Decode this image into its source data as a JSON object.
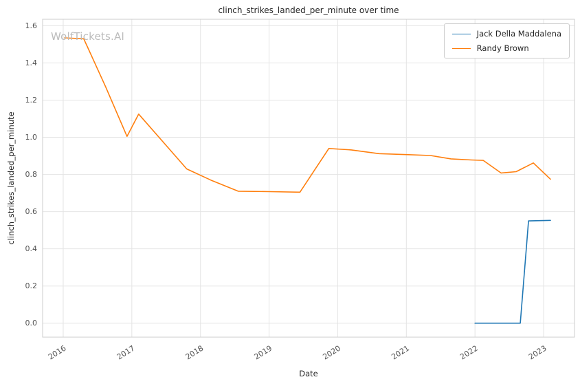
{
  "chart_data": {
    "type": "line",
    "title": "clinch_strikes_landed_per_minute over time",
    "xlabel": "Date",
    "ylabel": "clinch_strikes_landed_per_minute",
    "watermark": "WolfTickets.AI",
    "xlim": [
      2015.7,
      2023.45
    ],
    "ylim": [
      -0.075,
      1.635
    ],
    "xticks": [
      2016,
      2017,
      2018,
      2019,
      2020,
      2021,
      2022,
      2023
    ],
    "yticks": [
      0.0,
      0.2,
      0.4,
      0.6,
      0.8,
      1.0,
      1.2,
      1.4,
      1.6
    ],
    "grid": true,
    "legend_position": "upper right",
    "colors": {
      "grid": "#e4e4e4",
      "border": "#cccccc",
      "tick_label": "#525252",
      "text": "#262626",
      "watermark": "#bcbcbc",
      "background": "#ffffff"
    },
    "series": [
      {
        "name": "Jack Della Maddalena",
        "color": "#1f77b4",
        "x": [
          2022.0,
          2022.3,
          2022.66,
          2022.78,
          2023.1
        ],
        "y": [
          0.0,
          0.0,
          0.0,
          0.55,
          0.553
        ]
      },
      {
        "name": "Randy Brown",
        "color": "#ff7f0e",
        "x": [
          2016.02,
          2016.3,
          2016.62,
          2016.93,
          2017.1,
          2017.8,
          2018.15,
          2018.55,
          2019.0,
          2019.45,
          2019.87,
          2020.2,
          2020.6,
          2021.0,
          2021.35,
          2021.65,
          2021.95,
          2022.12,
          2022.38,
          2022.6,
          2022.85,
          2023.1
        ],
        "y": [
          1.535,
          1.53,
          1.27,
          1.005,
          1.125,
          0.83,
          0.77,
          0.71,
          0.708,
          0.705,
          0.94,
          0.932,
          0.912,
          0.907,
          0.902,
          0.884,
          0.878,
          0.876,
          0.808,
          0.815,
          0.862,
          0.775
        ]
      }
    ]
  }
}
